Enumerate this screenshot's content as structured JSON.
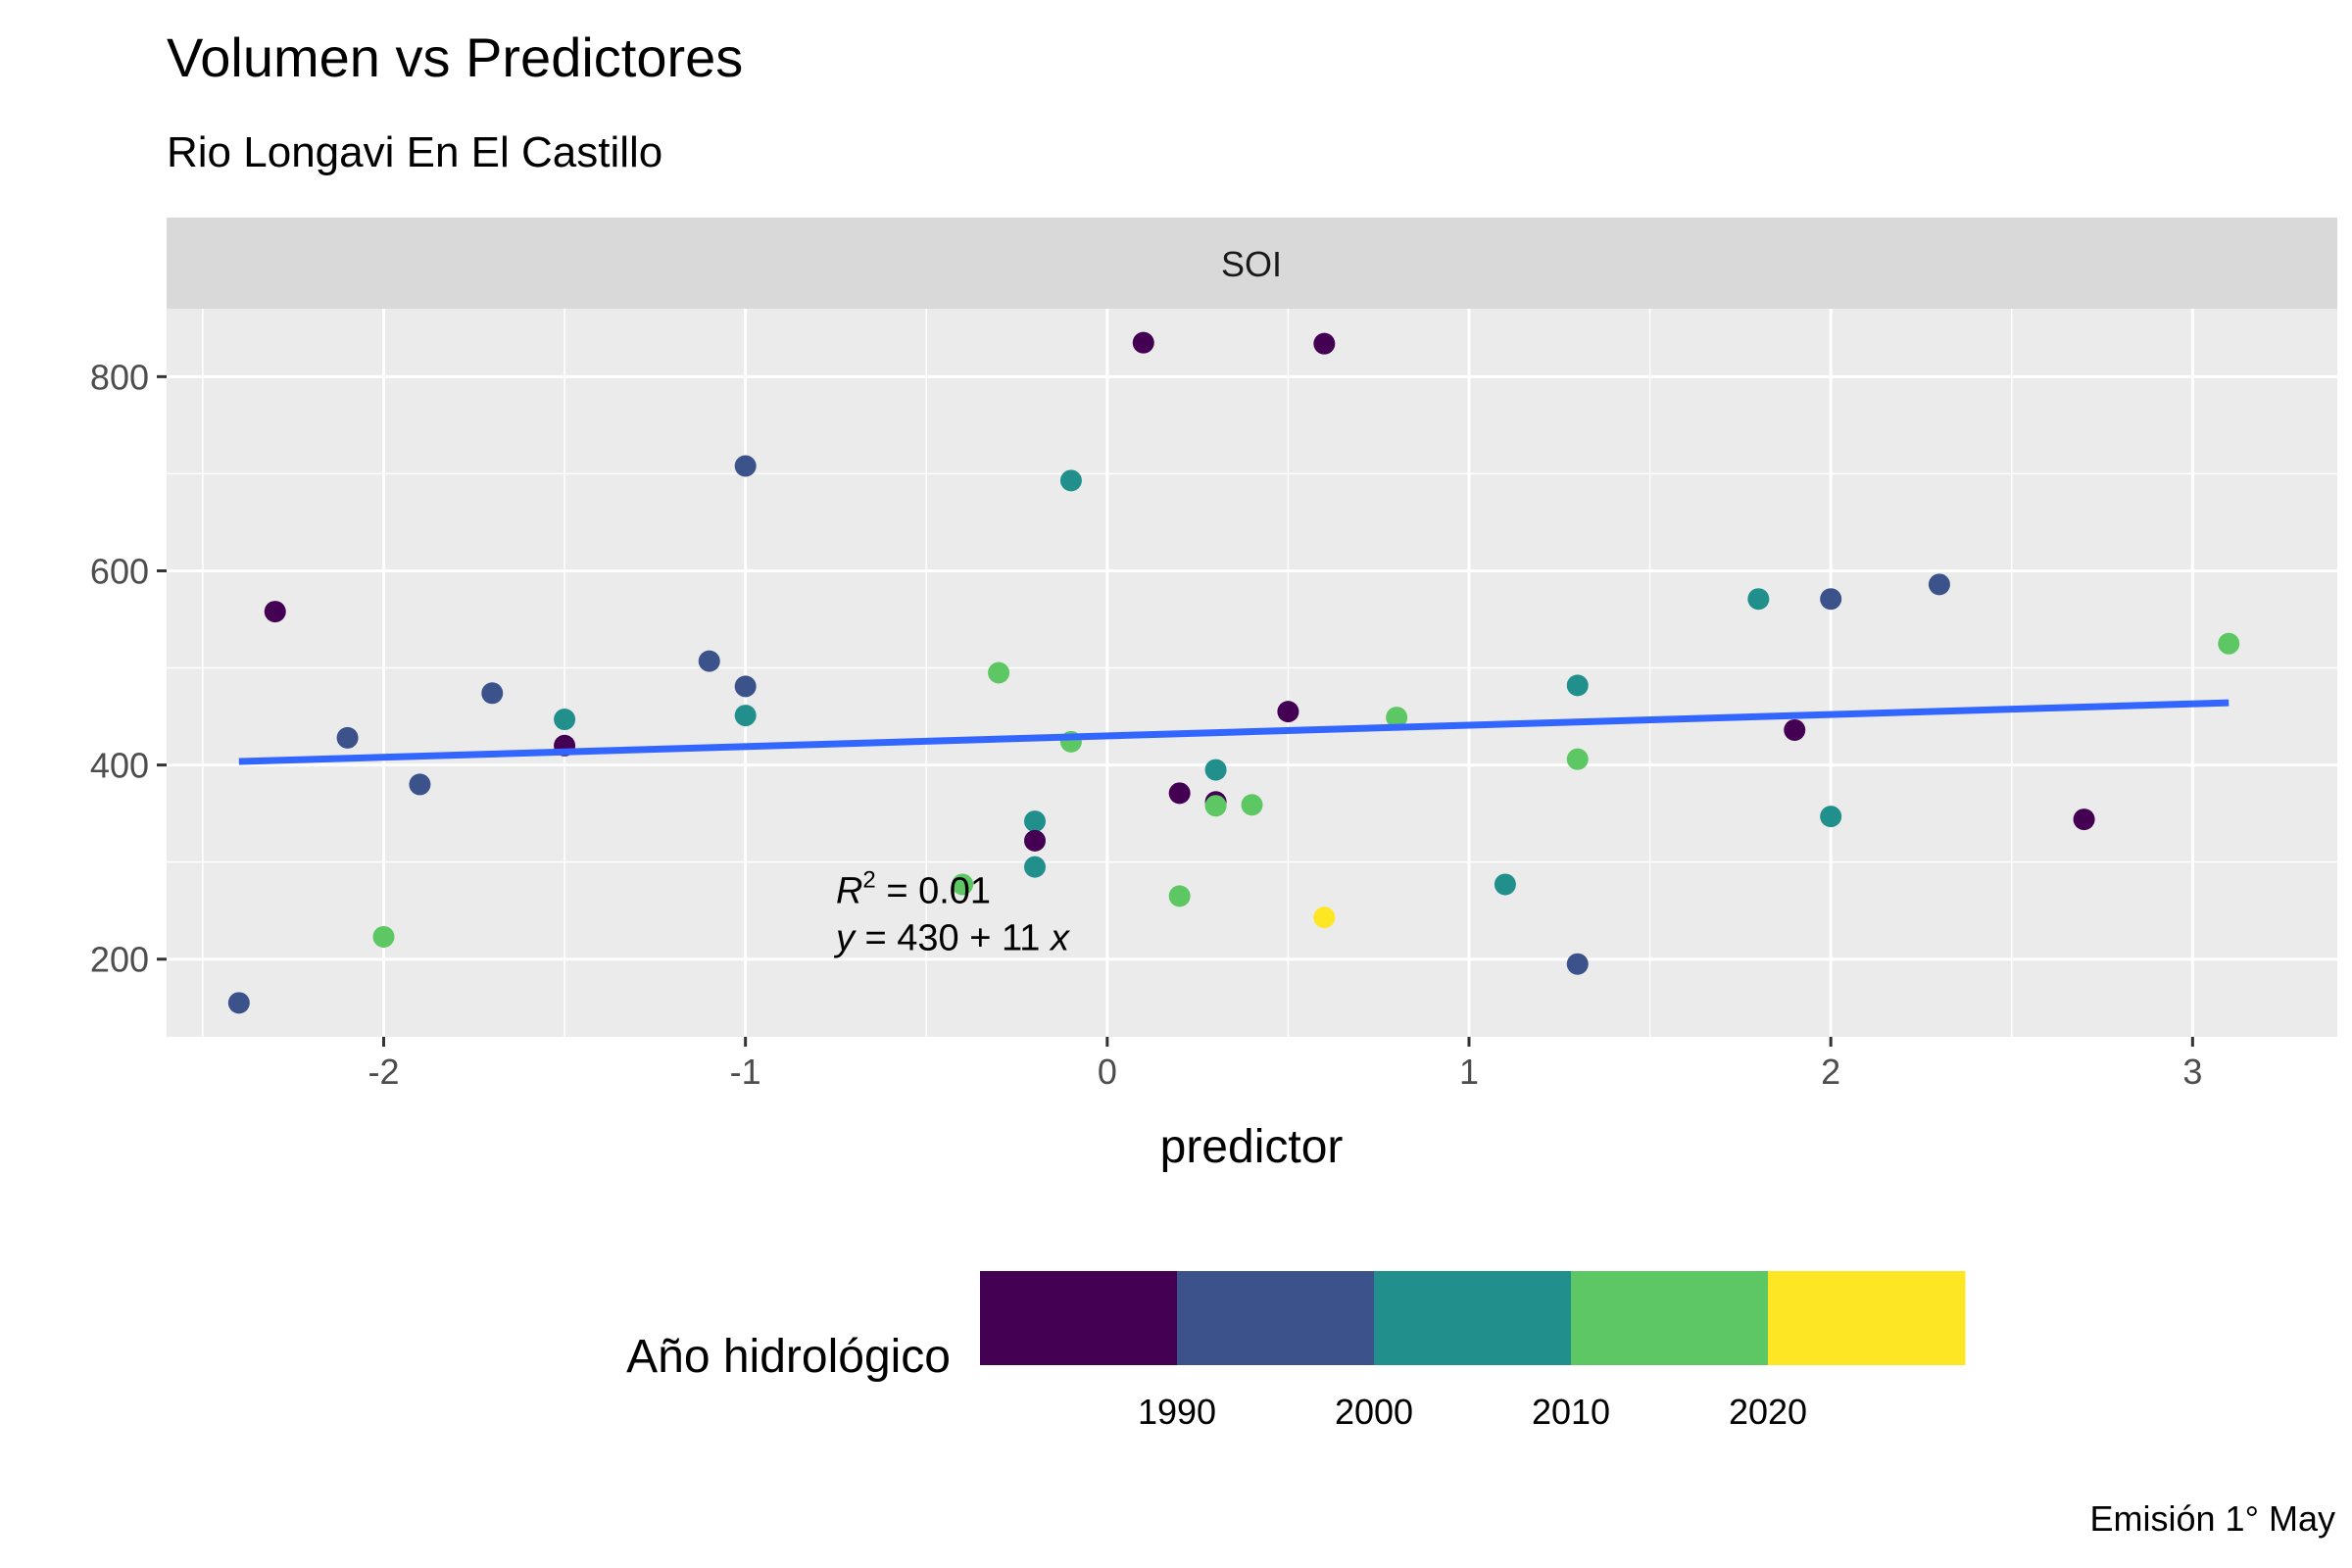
{
  "chart_data": {
    "type": "scatter",
    "title": "Volumen vs Predictores",
    "subtitle": "Rio Longavi En El Castillo",
    "facet": "SOI",
    "xlabel": "predictor",
    "ylabel": "",
    "xlim": [
      -2.6,
      3.4
    ],
    "ylim": [
      120,
      870
    ],
    "x_ticks": [
      -2,
      -1,
      0,
      1,
      2,
      3
    ],
    "x_tick_labels": [
      "-2",
      "-1",
      "0",
      "1",
      "2",
      "3"
    ],
    "y_ticks": [
      200,
      400,
      600,
      800
    ],
    "y_tick_labels": [
      "200",
      "400",
      "600",
      "800"
    ],
    "grid": true,
    "points": [
      {
        "x": -2.4,
        "y": 155,
        "year": 1996
      },
      {
        "x": -2.3,
        "y": 558,
        "year": 1986
      },
      {
        "x": -2.1,
        "y": 428,
        "year": 1996
      },
      {
        "x": -2.0,
        "y": 223,
        "year": 2016
      },
      {
        "x": -1.9,
        "y": 380,
        "year": 1996
      },
      {
        "x": -1.7,
        "y": 474,
        "year": 1996
      },
      {
        "x": -1.5,
        "y": 447,
        "year": 2006
      },
      {
        "x": -1.5,
        "y": 420,
        "year": 1986
      },
      {
        "x": -1.1,
        "y": 507,
        "year": 1996
      },
      {
        "x": -1.0,
        "y": 708,
        "year": 1996
      },
      {
        "x": -1.0,
        "y": 481,
        "year": 1996
      },
      {
        "x": -1.0,
        "y": 451,
        "year": 2006
      },
      {
        "x": -0.4,
        "y": 277,
        "year": 2016
      },
      {
        "x": -0.3,
        "y": 495,
        "year": 2016
      },
      {
        "x": -0.2,
        "y": 342,
        "year": 2006
      },
      {
        "x": -0.2,
        "y": 322,
        "year": 1986
      },
      {
        "x": -0.2,
        "y": 295,
        "year": 2006
      },
      {
        "x": -0.1,
        "y": 693,
        "year": 2006
      },
      {
        "x": -0.1,
        "y": 424,
        "year": 2016
      },
      {
        "x": 0.1,
        "y": 835,
        "year": 1986
      },
      {
        "x": 0.2,
        "y": 371,
        "year": 1986
      },
      {
        "x": 0.2,
        "y": 265,
        "year": 2016
      },
      {
        "x": 0.3,
        "y": 395,
        "year": 2006
      },
      {
        "x": 0.3,
        "y": 362,
        "year": 1986
      },
      {
        "x": 0.3,
        "y": 358,
        "year": 2016
      },
      {
        "x": 0.4,
        "y": 359,
        "year": 2016
      },
      {
        "x": 0.5,
        "y": 455,
        "year": 1986
      },
      {
        "x": 0.6,
        "y": 834,
        "year": 1986
      },
      {
        "x": 0.6,
        "y": 243,
        "year": 2024
      },
      {
        "x": 0.8,
        "y": 449,
        "year": 2016
      },
      {
        "x": 1.1,
        "y": 277,
        "year": 2006
      },
      {
        "x": 1.3,
        "y": 482,
        "year": 2006
      },
      {
        "x": 1.3,
        "y": 406,
        "year": 2016
      },
      {
        "x": 1.3,
        "y": 195,
        "year": 1996
      },
      {
        "x": 1.8,
        "y": 571,
        "year": 2006
      },
      {
        "x": 1.9,
        "y": 436,
        "year": 1986
      },
      {
        "x": 2.0,
        "y": 571,
        "year": 1996
      },
      {
        "x": 2.0,
        "y": 347,
        "year": 2006
      },
      {
        "x": 2.3,
        "y": 586,
        "year": 1996
      },
      {
        "x": 2.7,
        "y": 344,
        "year": 1986
      },
      {
        "x": 3.1,
        "y": 525,
        "year": 2016
      }
    ],
    "fit_line": {
      "intercept": 430,
      "slope": 11,
      "x_range": [
        -2.4,
        3.1
      ],
      "color": "#3366FF"
    },
    "annotation": {
      "r2_label": "R",
      "r2_sup": "2",
      "r2_rest": " = 0.01",
      "eq_y": "y",
      "eq_rest": " = 430 + 11 ",
      "eq_x": "x",
      "x": -0.75,
      "y": 270
    },
    "legend": {
      "title": "Año hidrológico",
      "placement": "bottom",
      "bins": [
        {
          "color": "#440154"
        },
        {
          "color": "#3B528B"
        },
        {
          "color": "#21908C"
        },
        {
          "color": "#5DC863"
        },
        {
          "color": "#FDE725"
        }
      ],
      "tick_labels": [
        "1990",
        "2000",
        "2010",
        "2020"
      ],
      "breaks": [
        1991,
        2001,
        2011,
        2021
      ]
    }
  },
  "caption": "Emisión 1° May"
}
